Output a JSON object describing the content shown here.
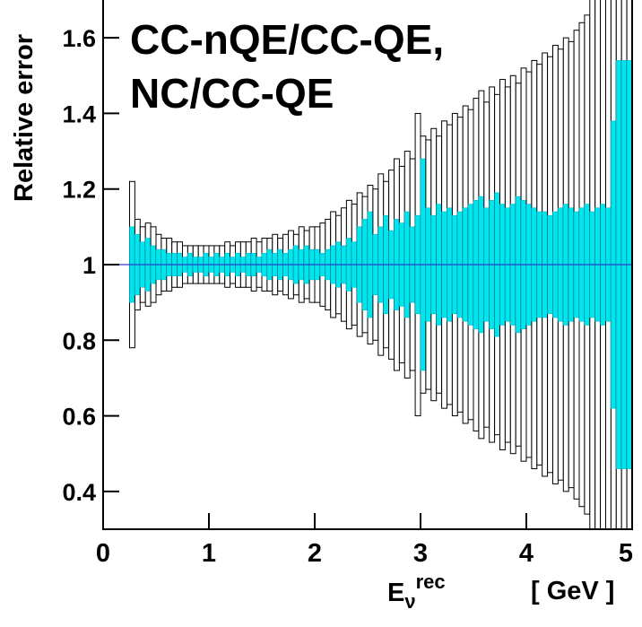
{
  "chart_data": {
    "type": "error_band",
    "title_lines": [
      "CC-nQE/CC-QE,",
      "NC/CC-QE"
    ],
    "ylabel": "Relative error",
    "xlabel": "E",
    "xlabel_sub": "ν",
    "xlabel_sup": "rec",
    "xunit": "[ GeV ]",
    "center": 1,
    "bins": [
      0,
      0.05,
      0.1,
      0.15,
      0.2,
      0.25,
      0.3,
      0.35,
      0.4,
      0.45,
      0.5,
      0.55,
      0.6,
      0.65,
      0.7,
      0.75,
      0.8,
      0.85,
      0.9,
      0.95,
      1,
      1.05,
      1.1,
      1.15,
      1.2,
      1.25,
      1.3,
      1.35,
      1.4,
      1.45,
      1.5,
      1.55,
      1.6,
      1.65,
      1.7,
      1.75,
      1.8,
      1.85,
      1.9,
      1.95,
      2,
      2.05,
      2.1,
      2.15,
      2.2,
      2.25,
      2.3,
      2.35,
      2.4,
      2.45,
      2.5,
      2.55,
      2.6,
      2.65,
      2.7,
      2.75,
      2.8,
      2.85,
      2.9,
      2.95,
      3,
      3.05,
      3.1,
      3.15,
      3.2,
      3.25,
      3.3,
      3.35,
      3.4,
      3.45,
      3.5,
      3.55,
      3.6,
      3.65,
      3.7,
      3.75,
      3.8,
      3.85,
      3.9,
      3.95,
      4,
      4.05,
      4.1,
      4.15,
      4.2,
      4.25,
      4.3,
      4.35,
      4.4,
      4.45,
      4.5,
      4.55,
      4.6,
      4.65,
      4.7,
      4.75,
      4.8,
      4.85,
      4.9,
      4.95,
      5
    ],
    "errors_outer": [
      0,
      0,
      0,
      0,
      0,
      0.22,
      0.12,
      0.1,
      0.11,
      0.1,
      0.08,
      0.07,
      0.07,
      0.06,
      0.06,
      0.05,
      0.05,
      0.05,
      0.05,
      0.05,
      0.05,
      0.05,
      0.05,
      0.06,
      0.05,
      0.06,
      0.06,
      0.06,
      0.07,
      0.06,
      0.07,
      0.07,
      0.08,
      0.07,
      0.08,
      0.09,
      0.08,
      0.1,
      0.09,
      0.1,
      0.1,
      0.11,
      0.12,
      0.14,
      0.13,
      0.15,
      0.17,
      0.16,
      0.19,
      0.18,
      0.21,
      0.2,
      0.24,
      0.22,
      0.25,
      0.28,
      0.26,
      0.3,
      0.28,
      0.4,
      0.34,
      0.33,
      0.36,
      0.34,
      0.38,
      0.37,
      0.4,
      0.39,
      0.42,
      0.41,
      0.44,
      0.46,
      0.43,
      0.47,
      0.45,
      0.49,
      0.47,
      0.5,
      0.48,
      0.52,
      0.51,
      0.54,
      0.53,
      0.56,
      0.55,
      0.58,
      0.57,
      0.6,
      0.59,
      0.62,
      0.64,
      0.66,
      0.8,
      0.8,
      0.8,
      0.8,
      0.8,
      0.8,
      0.8,
      0.8
    ],
    "errors_inner": [
      0,
      0,
      0,
      0,
      0,
      0.1,
      0.08,
      0.06,
      0.07,
      0.05,
      0.04,
      0.04,
      0.03,
      0.03,
      0.03,
      0.02,
      0.03,
      0.02,
      0.02,
      0.03,
      0.02,
      0.03,
      0.02,
      0.03,
      0.02,
      0.03,
      0.02,
      0.03,
      0.03,
      0.02,
      0.03,
      0.04,
      0.03,
      0.04,
      0.03,
      0.04,
      0.05,
      0.04,
      0.05,
      0.04,
      0.04,
      0.03,
      0.04,
      0.05,
      0.06,
      0.05,
      0.07,
      0.06,
      0.1,
      0.12,
      0.14,
      0.08,
      0.1,
      0.13,
      0.09,
      0.12,
      0.11,
      0.14,
      0.1,
      0.13,
      0.28,
      0.15,
      0.13,
      0.16,
      0.14,
      0.15,
      0.13,
      0.14,
      0.15,
      0.16,
      0.17,
      0.18,
      0.15,
      0.17,
      0.19,
      0.16,
      0.15,
      0.16,
      0.18,
      0.17,
      0.16,
      0.15,
      0.14,
      0.14,
      0.13,
      0.14,
      0.15,
      0.16,
      0.15,
      0.14,
      0.15,
      0.16,
      0.14,
      0.15,
      0.16,
      0.15,
      0.38,
      0.54,
      0.54,
      0.54
    ],
    "outer_color": "#ffffff",
    "inner_color": "#00e5ee",
    "line_color": "#3333cc",
    "xlim": [
      0,
      5
    ],
    "ylim": [
      0.3,
      1.7
    ],
    "xticks": [
      0,
      1,
      2,
      3,
      4,
      5
    ],
    "yticks": [
      0.4,
      0.6,
      0.8,
      1,
      1.2,
      1.4,
      1.6
    ]
  }
}
